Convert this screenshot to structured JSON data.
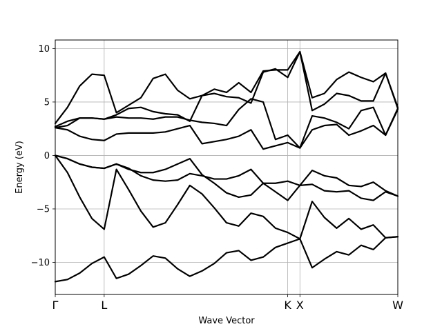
{
  "chart_data": {
    "type": "line",
    "title": "",
    "xlabel": "Wave Vector",
    "ylabel": "Energy (eV)",
    "ylim": [
      -13,
      10.8
    ],
    "y_ticks": [
      10,
      5,
      0,
      -5,
      -10
    ],
    "y_tick_labels": [
      "10",
      "5",
      "0",
      "−5",
      "−10"
    ],
    "grid": true,
    "x_range": [
      0,
      28
    ],
    "high_symmetry_points": [
      {
        "label": "Γ",
        "x": 0
      },
      {
        "label": "L",
        "x": 4
      },
      {
        "label": "K",
        "x": 19
      },
      {
        "label": "X",
        "x": 20
      },
      {
        "label": "W",
        "x": 28
      }
    ],
    "x": [
      0,
      1,
      2,
      3,
      4,
      5,
      6,
      7,
      8,
      9,
      10,
      11,
      12,
      13,
      14,
      15,
      16,
      17,
      18,
      19,
      20,
      21,
      22,
      23,
      24,
      25,
      26,
      27,
      28
    ],
    "line_color": "#000000",
    "series": [
      {
        "values": [
          -11.8,
          -11.6,
          -11.0,
          -10.1,
          -9.5,
          -11.5,
          -11.1,
          -10.3,
          -9.4,
          -9.6,
          -10.6,
          -11.3,
          -10.8,
          -10.1,
          -9.1,
          -8.9,
          -9.8,
          -9.5,
          -8.6,
          -8.2,
          -7.8,
          -10.5,
          -9.7,
          -9.0,
          -9.3,
          -8.4,
          -8.8,
          -7.7,
          -7.6
        ]
      },
      {
        "values": [
          0.0,
          -1.6,
          -3.9,
          -5.9,
          -6.9,
          -1.3,
          -3.2,
          -5.2,
          -6.7,
          -6.3,
          -4.6,
          -2.8,
          -3.6,
          -4.9,
          -6.3,
          -6.6,
          -5.4,
          -5.7,
          -6.8,
          -7.2,
          -7.8,
          -4.3,
          -5.8,
          -6.8,
          -5.9,
          -6.9,
          -6.5,
          -7.7,
          -7.6
        ]
      },
      {
        "values": [
          0.0,
          -0.3,
          -0.8,
          -1.1,
          -1.2,
          -0.8,
          -1.3,
          -1.6,
          -1.6,
          -1.3,
          -0.8,
          -0.3,
          -1.8,
          -2.6,
          -3.5,
          -3.9,
          -3.7,
          -2.6,
          -3.4,
          -4.2,
          -2.8,
          -1.4,
          -1.9,
          -2.1,
          -2.8,
          -2.9,
          -2.5,
          -3.3,
          -3.8
        ]
      },
      {
        "values": [
          0.0,
          -0.3,
          -0.8,
          -1.1,
          -1.2,
          -0.8,
          -1.2,
          -1.9,
          -2.3,
          -2.4,
          -2.3,
          -1.7,
          -1.9,
          -2.2,
          -2.2,
          -1.9,
          -1.3,
          -2.6,
          -2.6,
          -2.4,
          -2.8,
          -2.7,
          -3.3,
          -3.4,
          -3.3,
          -4.0,
          -4.2,
          -3.4,
          -3.8
        ]
      },
      {
        "values": [
          2.6,
          2.4,
          1.8,
          1.5,
          1.4,
          2.0,
          2.1,
          2.1,
          2.1,
          2.2,
          2.5,
          2.8,
          1.1,
          1.3,
          1.5,
          1.8,
          2.4,
          0.6,
          0.9,
          1.2,
          0.7,
          2.4,
          2.8,
          2.9,
          1.9,
          2.3,
          2.8,
          1.9,
          4.3
        ]
      },
      {
        "values": [
          2.6,
          2.8,
          3.5,
          3.5,
          3.4,
          3.6,
          3.5,
          3.5,
          3.4,
          3.6,
          3.6,
          3.3,
          3.1,
          3.0,
          2.8,
          4.3,
          5.3,
          5.0,
          1.5,
          1.9,
          0.7,
          3.7,
          3.5,
          3.1,
          2.5,
          4.2,
          4.5,
          1.9,
          4.4
        ]
      },
      {
        "values": [
          2.7,
          3.2,
          3.5,
          3.5,
          3.4,
          3.8,
          4.4,
          4.5,
          4.1,
          3.9,
          3.8,
          3.2,
          5.6,
          5.8,
          5.5,
          5.4,
          4.9,
          7.8,
          8.1,
          7.3,
          9.7,
          4.2,
          4.8,
          5.8,
          5.6,
          5.1,
          5.1,
          7.7,
          4.4
        ]
      },
      {
        "values": [
          3.0,
          4.5,
          6.5,
          7.6,
          7.5,
          4.0,
          4.7,
          5.4,
          7.2,
          7.6,
          6.1,
          5.3,
          5.6,
          6.2,
          5.9,
          6.8,
          5.9,
          7.9,
          8.0,
          8.0,
          9.7,
          5.4,
          5.8,
          7.1,
          7.8,
          7.3,
          6.9,
          7.7,
          4.5
        ]
      }
    ]
  }
}
